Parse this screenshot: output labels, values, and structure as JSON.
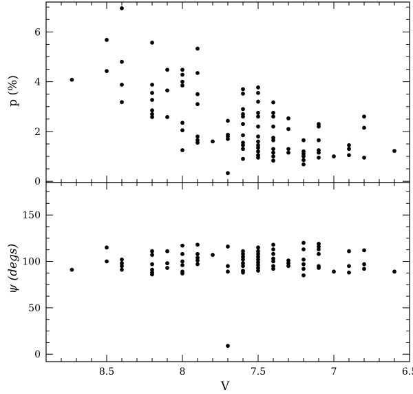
{
  "chart_data": [
    {
      "type": "scatter",
      "panel": "top",
      "ylabel": "p (%)",
      "xlabel": "",
      "xlim": [
        8.9,
        6.5
      ],
      "ylim": [
        -0.05,
        7.2
      ],
      "xticks": [
        8.5,
        8,
        7.5,
        7,
        6.5
      ],
      "xtick_labels": [],
      "yticks": [
        0,
        2,
        4,
        6
      ],
      "ytick_labels": [
        "0",
        "2",
        "4",
        "6"
      ],
      "grid": false,
      "points": [
        {
          "x": 8.73,
          "y": 4.08
        },
        {
          "x": 8.5,
          "y": 5.68
        },
        {
          "x": 8.5,
          "y": 4.43
        },
        {
          "x": 8.4,
          "y": 6.95
        },
        {
          "x": 8.4,
          "y": 4.8
        },
        {
          "x": 8.4,
          "y": 3.88
        },
        {
          "x": 8.4,
          "y": 3.18
        },
        {
          "x": 8.2,
          "y": 5.57
        },
        {
          "x": 8.2,
          "y": 3.88
        },
        {
          "x": 8.2,
          "y": 3.55
        },
        {
          "x": 8.2,
          "y": 3.27
        },
        {
          "x": 8.2,
          "y": 2.85
        },
        {
          "x": 8.2,
          "y": 2.7
        },
        {
          "x": 8.2,
          "y": 2.58
        },
        {
          "x": 8.1,
          "y": 4.48
        },
        {
          "x": 8.1,
          "y": 3.65
        },
        {
          "x": 8.1,
          "y": 2.58
        },
        {
          "x": 8.0,
          "y": 4.48
        },
        {
          "x": 8.0,
          "y": 4.28
        },
        {
          "x": 8.0,
          "y": 4.0
        },
        {
          "x": 8.0,
          "y": 3.85
        },
        {
          "x": 8.0,
          "y": 2.35
        },
        {
          "x": 8.0,
          "y": 2.05
        },
        {
          "x": 8.0,
          "y": 1.25
        },
        {
          "x": 7.9,
          "y": 5.33
        },
        {
          "x": 7.9,
          "y": 4.35
        },
        {
          "x": 7.9,
          "y": 3.5
        },
        {
          "x": 7.9,
          "y": 3.1
        },
        {
          "x": 7.9,
          "y": 1.8
        },
        {
          "x": 7.9,
          "y": 1.65
        },
        {
          "x": 7.9,
          "y": 1.55
        },
        {
          "x": 7.8,
          "y": 1.6
        },
        {
          "x": 7.7,
          "y": 2.43
        },
        {
          "x": 7.7,
          "y": 1.87
        },
        {
          "x": 7.7,
          "y": 1.8
        },
        {
          "x": 7.7,
          "y": 1.7
        },
        {
          "x": 7.7,
          "y": 0.33
        },
        {
          "x": 7.6,
          "y": 3.7
        },
        {
          "x": 7.6,
          "y": 3.52
        },
        {
          "x": 7.6,
          "y": 2.9
        },
        {
          "x": 7.6,
          "y": 2.7
        },
        {
          "x": 7.6,
          "y": 2.6
        },
        {
          "x": 7.6,
          "y": 2.3
        },
        {
          "x": 7.6,
          "y": 1.85
        },
        {
          "x": 7.6,
          "y": 1.55
        },
        {
          "x": 7.6,
          "y": 1.45
        },
        {
          "x": 7.6,
          "y": 1.3
        },
        {
          "x": 7.6,
          "y": 0.9
        },
        {
          "x": 7.5,
          "y": 3.77
        },
        {
          "x": 7.5,
          "y": 3.55
        },
        {
          "x": 7.5,
          "y": 3.2
        },
        {
          "x": 7.5,
          "y": 2.75
        },
        {
          "x": 7.5,
          "y": 2.6
        },
        {
          "x": 7.5,
          "y": 2.2
        },
        {
          "x": 7.5,
          "y": 1.8
        },
        {
          "x": 7.5,
          "y": 1.6
        },
        {
          "x": 7.5,
          "y": 1.45
        },
        {
          "x": 7.5,
          "y": 1.35
        },
        {
          "x": 7.5,
          "y": 1.2
        },
        {
          "x": 7.5,
          "y": 1.05
        },
        {
          "x": 7.5,
          "y": 0.95
        },
        {
          "x": 7.4,
          "y": 3.17
        },
        {
          "x": 7.4,
          "y": 2.75
        },
        {
          "x": 7.4,
          "y": 2.6
        },
        {
          "x": 7.4,
          "y": 2.2
        },
        {
          "x": 7.4,
          "y": 1.75
        },
        {
          "x": 7.4,
          "y": 1.65
        },
        {
          "x": 7.4,
          "y": 1.3
        },
        {
          "x": 7.4,
          "y": 1.15
        },
        {
          "x": 7.4,
          "y": 1.0
        },
        {
          "x": 7.4,
          "y": 0.83
        },
        {
          "x": 7.3,
          "y": 2.53
        },
        {
          "x": 7.3,
          "y": 2.1
        },
        {
          "x": 7.3,
          "y": 1.3
        },
        {
          "x": 7.3,
          "y": 1.15
        },
        {
          "x": 7.2,
          "y": 1.65
        },
        {
          "x": 7.2,
          "y": 1.2
        },
        {
          "x": 7.2,
          "y": 1.1
        },
        {
          "x": 7.2,
          "y": 1.0
        },
        {
          "x": 7.2,
          "y": 0.85
        },
        {
          "x": 7.2,
          "y": 0.68
        },
        {
          "x": 7.1,
          "y": 2.3
        },
        {
          "x": 7.1,
          "y": 2.2
        },
        {
          "x": 7.1,
          "y": 1.65
        },
        {
          "x": 7.1,
          "y": 1.25
        },
        {
          "x": 7.1,
          "y": 1.15
        },
        {
          "x": 7.1,
          "y": 0.95
        },
        {
          "x": 7.0,
          "y": 1.0
        },
        {
          "x": 6.9,
          "y": 1.45
        },
        {
          "x": 6.9,
          "y": 1.3
        },
        {
          "x": 6.9,
          "y": 1.05
        },
        {
          "x": 6.8,
          "y": 2.6
        },
        {
          "x": 6.8,
          "y": 2.15
        },
        {
          "x": 6.8,
          "y": 0.95
        },
        {
          "x": 6.6,
          "y": 1.22
        }
      ]
    },
    {
      "type": "scatter",
      "panel": "bottom",
      "ylabel": "ψ (degs)",
      "xlabel": "V",
      "xlim": [
        8.9,
        6.5
      ],
      "ylim": [
        -8,
        185
      ],
      "xticks": [
        8.5,
        8,
        7.5,
        7,
        6.5
      ],
      "xtick_labels": [
        "8.5",
        "8",
        "7.5",
        "7",
        "6.5"
      ],
      "yticks": [
        0,
        50,
        100,
        150
      ],
      "ytick_labels": [
        "0",
        "50",
        "100",
        "150"
      ],
      "grid": false,
      "points": [
        {
          "x": 8.73,
          "y": 91
        },
        {
          "x": 8.5,
          "y": 115
        },
        {
          "x": 8.5,
          "y": 100
        },
        {
          "x": 8.4,
          "y": 102
        },
        {
          "x": 8.4,
          "y": 98
        },
        {
          "x": 8.4,
          "y": 95
        },
        {
          "x": 8.4,
          "y": 91
        },
        {
          "x": 8.2,
          "y": 111
        },
        {
          "x": 8.2,
          "y": 107
        },
        {
          "x": 8.2,
          "y": 97
        },
        {
          "x": 8.2,
          "y": 91
        },
        {
          "x": 8.2,
          "y": 88
        },
        {
          "x": 8.2,
          "y": 86
        },
        {
          "x": 8.1,
          "y": 111
        },
        {
          "x": 8.1,
          "y": 98
        },
        {
          "x": 8.1,
          "y": 93
        },
        {
          "x": 8.0,
          "y": 117
        },
        {
          "x": 8.0,
          "y": 108
        },
        {
          "x": 8.0,
          "y": 100
        },
        {
          "x": 8.0,
          "y": 96
        },
        {
          "x": 8.0,
          "y": 89
        },
        {
          "x": 8.0,
          "y": 87
        },
        {
          "x": 7.9,
          "y": 118
        },
        {
          "x": 7.9,
          "y": 108
        },
        {
          "x": 7.9,
          "y": 104
        },
        {
          "x": 7.9,
          "y": 101
        },
        {
          "x": 7.9,
          "y": 97
        },
        {
          "x": 7.8,
          "y": 107
        },
        {
          "x": 7.7,
          "y": 116
        },
        {
          "x": 7.7,
          "y": 95
        },
        {
          "x": 7.7,
          "y": 89
        },
        {
          "x": 7.7,
          "y": 9
        },
        {
          "x": 7.6,
          "y": 111
        },
        {
          "x": 7.6,
          "y": 108
        },
        {
          "x": 7.6,
          "y": 105
        },
        {
          "x": 7.6,
          "y": 102
        },
        {
          "x": 7.6,
          "y": 98
        },
        {
          "x": 7.6,
          "y": 95
        },
        {
          "x": 7.6,
          "y": 90
        },
        {
          "x": 7.6,
          "y": 88
        },
        {
          "x": 7.5,
          "y": 115
        },
        {
          "x": 7.5,
          "y": 111
        },
        {
          "x": 7.5,
          "y": 108
        },
        {
          "x": 7.5,
          "y": 105
        },
        {
          "x": 7.5,
          "y": 102
        },
        {
          "x": 7.5,
          "y": 99
        },
        {
          "x": 7.5,
          "y": 96
        },
        {
          "x": 7.5,
          "y": 93
        },
        {
          "x": 7.5,
          "y": 90
        },
        {
          "x": 7.4,
          "y": 118
        },
        {
          "x": 7.4,
          "y": 113
        },
        {
          "x": 7.4,
          "y": 108
        },
        {
          "x": 7.4,
          "y": 103
        },
        {
          "x": 7.4,
          "y": 100
        },
        {
          "x": 7.4,
          "y": 95
        },
        {
          "x": 7.4,
          "y": 92
        },
        {
          "x": 7.3,
          "y": 101
        },
        {
          "x": 7.3,
          "y": 98
        },
        {
          "x": 7.3,
          "y": 95
        },
        {
          "x": 7.2,
          "y": 120
        },
        {
          "x": 7.2,
          "y": 113
        },
        {
          "x": 7.2,
          "y": 102
        },
        {
          "x": 7.2,
          "y": 97
        },
        {
          "x": 7.2,
          "y": 92
        },
        {
          "x": 7.2,
          "y": 85
        },
        {
          "x": 7.1,
          "y": 119
        },
        {
          "x": 7.1,
          "y": 116
        },
        {
          "x": 7.1,
          "y": 113
        },
        {
          "x": 7.1,
          "y": 108
        },
        {
          "x": 7.1,
          "y": 95
        },
        {
          "x": 7.1,
          "y": 93
        },
        {
          "x": 7.0,
          "y": 89
        },
        {
          "x": 6.9,
          "y": 111
        },
        {
          "x": 6.9,
          "y": 95
        },
        {
          "x": 6.9,
          "y": 88
        },
        {
          "x": 6.8,
          "y": 112
        },
        {
          "x": 6.8,
          "y": 97
        },
        {
          "x": 6.8,
          "y": 92
        },
        {
          "x": 6.6,
          "y": 89
        }
      ]
    }
  ]
}
